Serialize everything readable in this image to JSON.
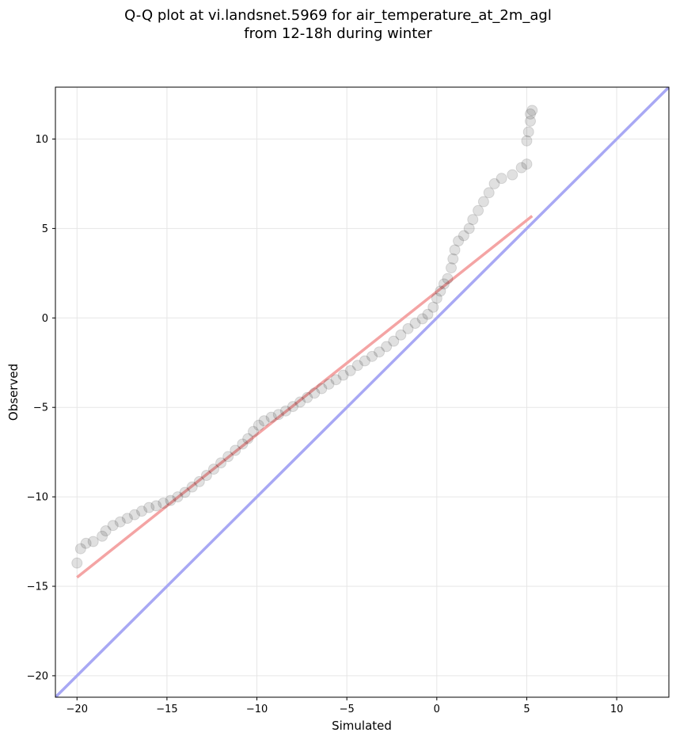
{
  "chart_data": {
    "type": "scatter",
    "title_line1": "Q-Q plot at vi.landsnet.5969 for air_temperature_at_2m_agl",
    "title_line2": "from 12-18h during winter",
    "xlabel": "Simulated",
    "ylabel": "Observed",
    "xlim": [
      -21.2,
      12.9
    ],
    "ylim": [
      -21.2,
      12.9
    ],
    "xticks": [
      -20,
      -15,
      -10,
      -5,
      0,
      5,
      10
    ],
    "yticks": [
      -20,
      -15,
      -10,
      -5,
      0,
      5,
      10
    ],
    "grid": true,
    "colors": {
      "points": "#000000",
      "fit_line": "#f4a4a4",
      "identity_line": "#a8a8f4"
    },
    "fit_line": {
      "x": [
        -20,
        5.3
      ],
      "y": [
        -14.5,
        5.7
      ]
    },
    "identity_line": {
      "x": [
        -21.2,
        12.9
      ],
      "y": [
        -21.2,
        12.9
      ]
    },
    "points": [
      [
        -20,
        -13.7
      ],
      [
        -19.8,
        -12.9
      ],
      [
        -19.5,
        -12.6
      ],
      [
        -19.1,
        -12.5
      ],
      [
        -18.6,
        -12.2
      ],
      [
        -18.4,
        -11.9
      ],
      [
        -18.0,
        -11.6
      ],
      [
        -17.6,
        -11.4
      ],
      [
        -17.2,
        -11.2
      ],
      [
        -16.8,
        -11.0
      ],
      [
        -16.4,
        -10.8
      ],
      [
        -16.0,
        -10.6
      ],
      [
        -15.6,
        -10.5
      ],
      [
        -15.2,
        -10.35
      ],
      [
        -14.8,
        -10.2
      ],
      [
        -14.4,
        -10.0
      ],
      [
        -14.0,
        -9.75
      ],
      [
        -13.6,
        -9.45
      ],
      [
        -13.2,
        -9.15
      ],
      [
        -12.8,
        -8.8
      ],
      [
        -12.4,
        -8.45
      ],
      [
        -12.0,
        -8.1
      ],
      [
        -11.6,
        -7.75
      ],
      [
        -11.2,
        -7.4
      ],
      [
        -10.8,
        -7.05
      ],
      [
        -10.5,
        -6.75
      ],
      [
        -10.2,
        -6.35
      ],
      [
        -9.9,
        -6.0
      ],
      [
        -9.6,
        -5.75
      ],
      [
        -9.2,
        -5.55
      ],
      [
        -8.8,
        -5.4
      ],
      [
        -8.4,
        -5.2
      ],
      [
        -8.0,
        -4.95
      ],
      [
        -7.6,
        -4.7
      ],
      [
        -7.2,
        -4.45
      ],
      [
        -6.8,
        -4.2
      ],
      [
        -6.4,
        -3.95
      ],
      [
        -6.0,
        -3.7
      ],
      [
        -5.6,
        -3.45
      ],
      [
        -5.2,
        -3.2
      ],
      [
        -4.8,
        -2.95
      ],
      [
        -4.4,
        -2.65
      ],
      [
        -4.0,
        -2.4
      ],
      [
        -3.6,
        -2.15
      ],
      [
        -3.2,
        -1.9
      ],
      [
        -2.8,
        -1.6
      ],
      [
        -2.4,
        -1.3
      ],
      [
        -2.0,
        -0.95
      ],
      [
        -1.6,
        -0.6
      ],
      [
        -1.2,
        -0.3
      ],
      [
        -0.8,
        -0.05
      ],
      [
        -0.5,
        0.2
      ],
      [
        -0.2,
        0.6
      ],
      [
        0.0,
        1.1
      ],
      [
        0.2,
        1.5
      ],
      [
        0.4,
        1.9
      ],
      [
        0.6,
        2.2
      ],
      [
        0.8,
        2.8
      ],
      [
        0.9,
        3.3
      ],
      [
        1.0,
        3.8
      ],
      [
        1.2,
        4.3
      ],
      [
        1.5,
        4.6
      ],
      [
        1.8,
        5.0
      ],
      [
        2.0,
        5.5
      ],
      [
        2.3,
        6.0
      ],
      [
        2.6,
        6.5
      ],
      [
        2.9,
        7.0
      ],
      [
        3.2,
        7.5
      ],
      [
        3.6,
        7.8
      ],
      [
        4.2,
        8.0
      ],
      [
        4.7,
        8.4
      ],
      [
        5.0,
        8.6
      ],
      [
        5.0,
        9.9
      ],
      [
        5.1,
        10.4
      ],
      [
        5.2,
        11.0
      ],
      [
        5.2,
        11.4
      ],
      [
        5.3,
        11.6
      ]
    ]
  }
}
